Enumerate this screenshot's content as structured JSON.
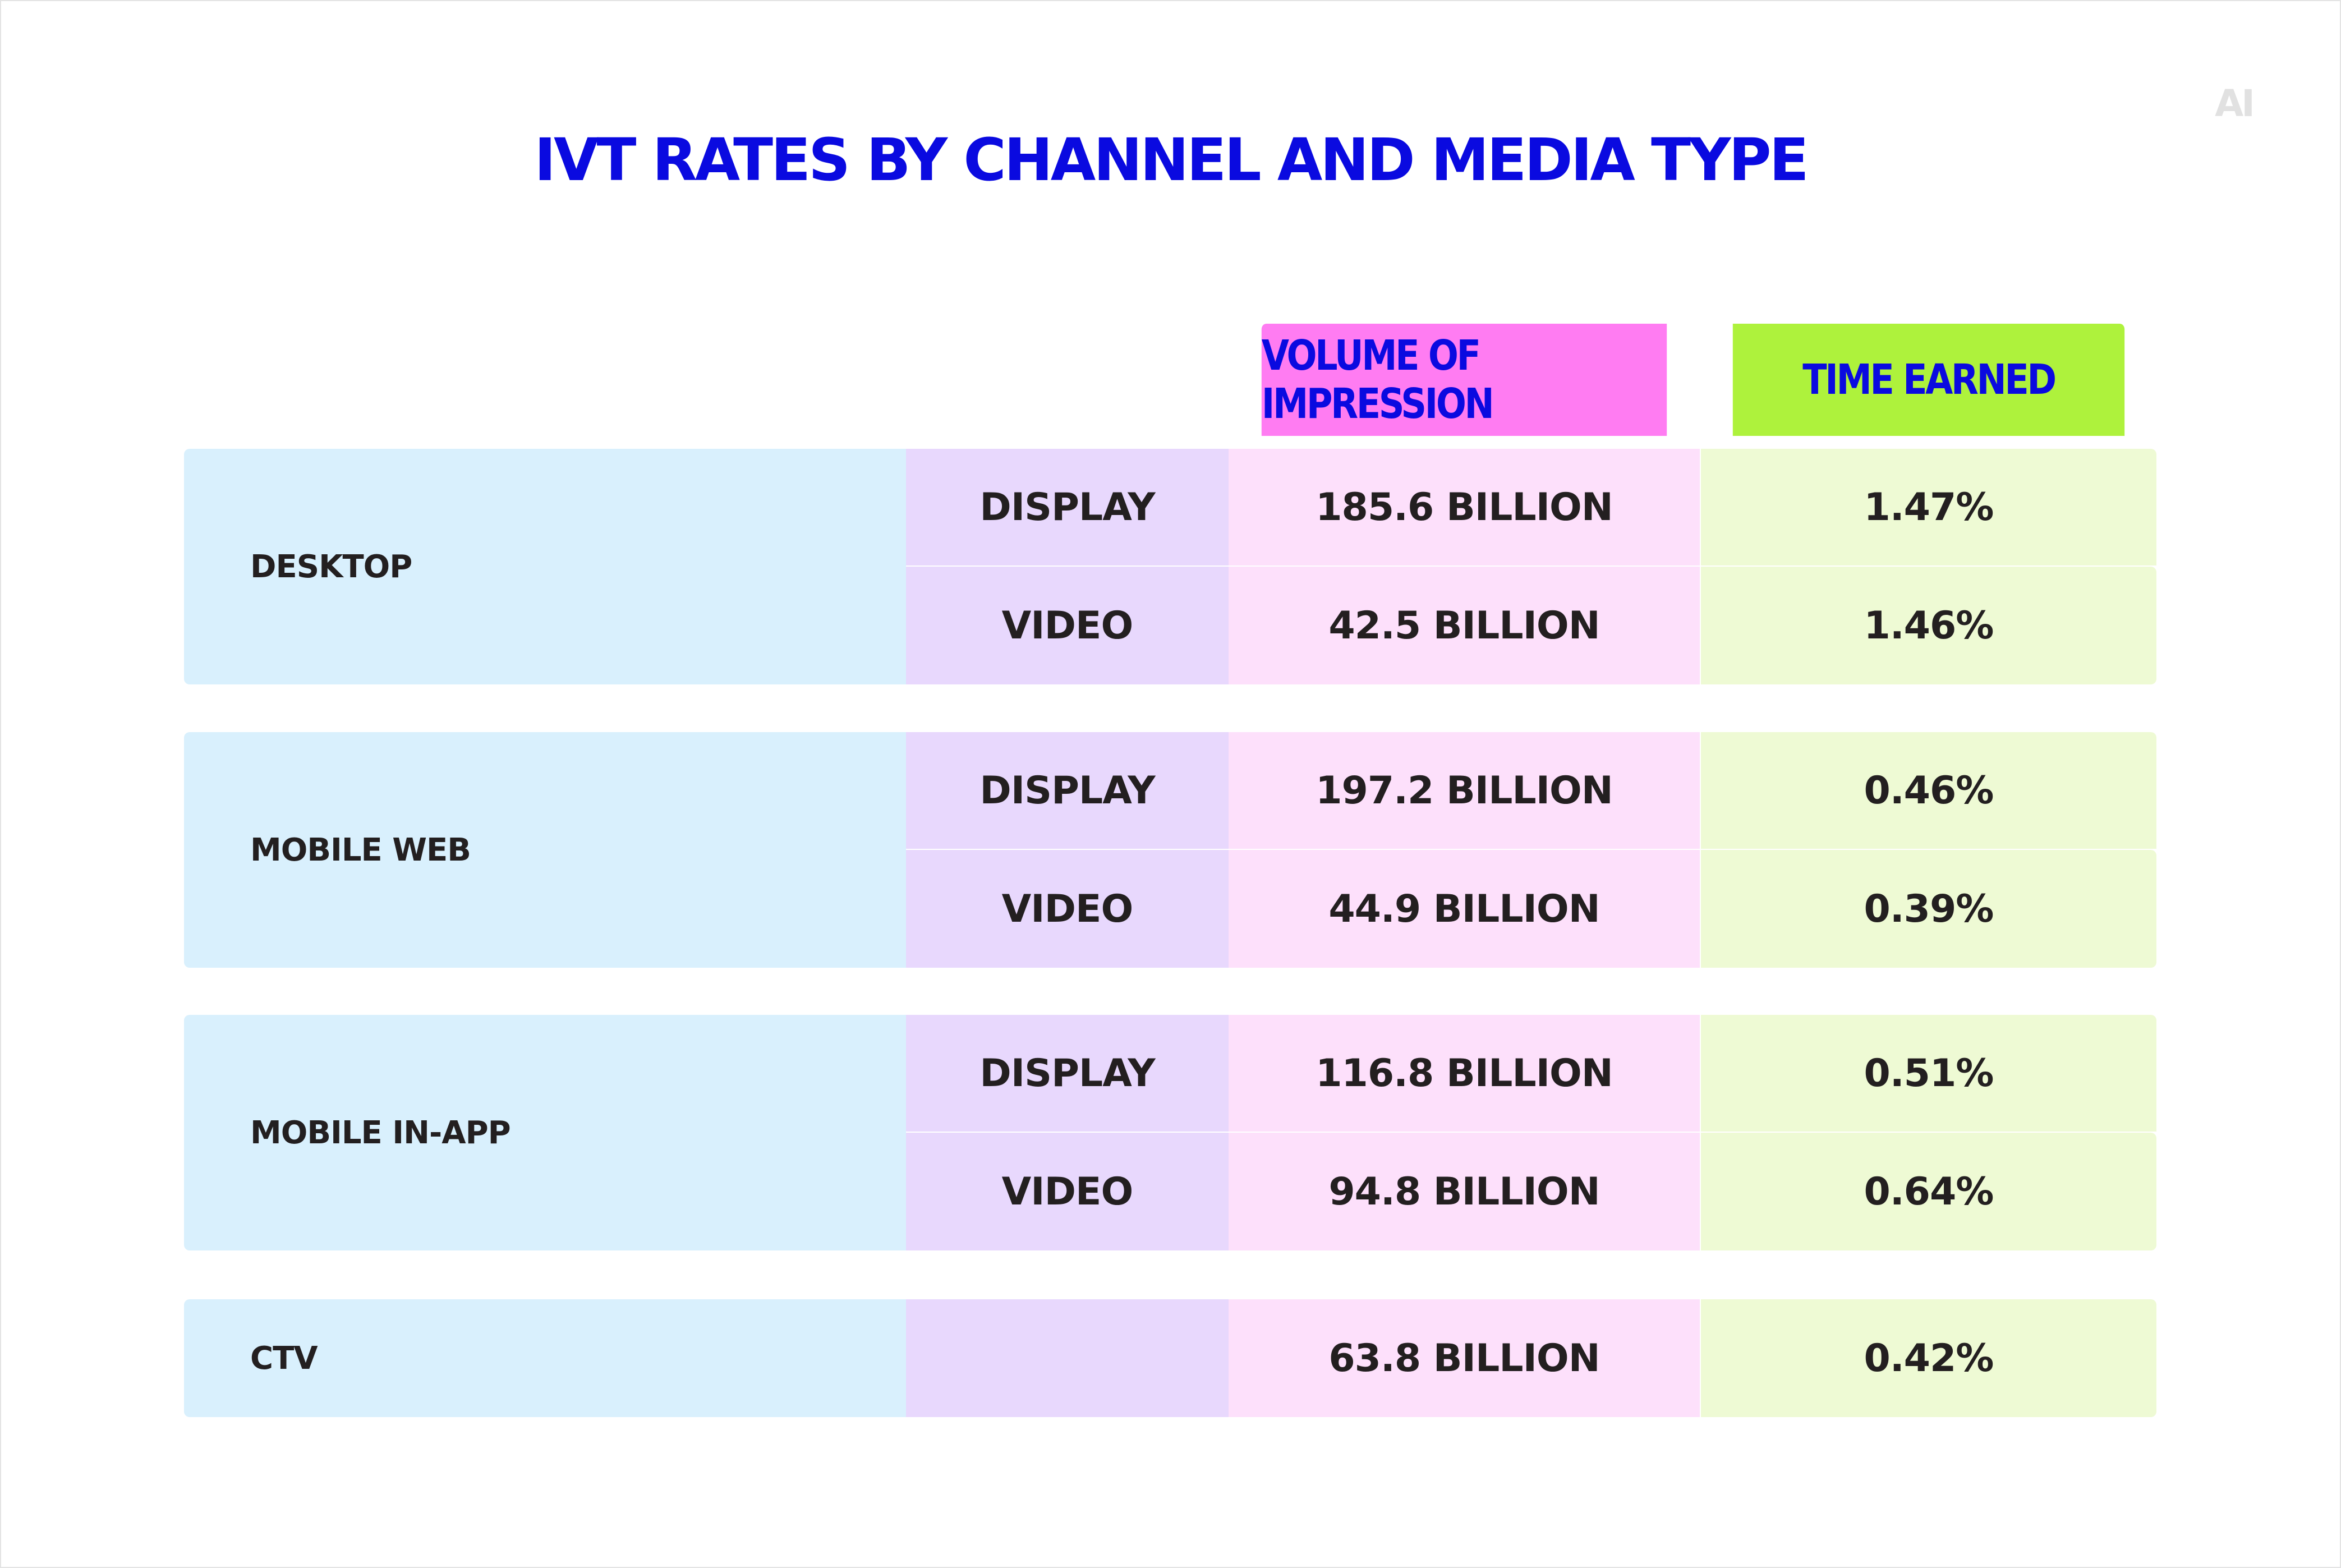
{
  "title": "IVT RATES BY CHANNEL AND MEDIA TYPE",
  "logo_text": "AI",
  "headers": {
    "volume": "VOLUME OF IMPRESSION",
    "time": "TIME EARNED"
  },
  "colors": {
    "title": "#0a0ae0",
    "header_volume_bg": "#ff7cf2",
    "header_time_bg": "#aef23c",
    "channel_bg": "#d9f0fd",
    "media_bg": "#e8d8fd",
    "volume_bg": "#fde0fb",
    "time_bg": "#eefad4"
  },
  "chart_data": {
    "type": "table",
    "title": "IVT RATES BY CHANNEL AND MEDIA TYPE",
    "columns": [
      "",
      "",
      "VOLUME OF IMPRESSION",
      "TIME EARNED"
    ],
    "groups": [
      {
        "channel": "DESKTOP",
        "rows": [
          {
            "media": "DISPLAY",
            "volume": "185.6 BILLION",
            "time": "1.47%"
          },
          {
            "media": "VIDEO",
            "volume": "42.5 BILLION",
            "time": "1.46%"
          }
        ]
      },
      {
        "channel": "MOBILE WEB",
        "rows": [
          {
            "media": "DISPLAY",
            "volume": "197.2 BILLION",
            "time": "0.46%"
          },
          {
            "media": "VIDEO",
            "volume": "44.9 BILLION",
            "time": "0.39%"
          }
        ]
      },
      {
        "channel": "MOBILE IN-APP",
        "rows": [
          {
            "media": "DISPLAY",
            "volume": "116.8 BILLION",
            "time": "0.51%"
          },
          {
            "media": "VIDEO",
            "volume": "94.8 BILLION",
            "time": "0.64%"
          }
        ]
      },
      {
        "channel": "CTV",
        "rows": [
          {
            "media": "",
            "volume": "63.8 BILLION",
            "time": "0.42%"
          }
        ]
      }
    ]
  }
}
